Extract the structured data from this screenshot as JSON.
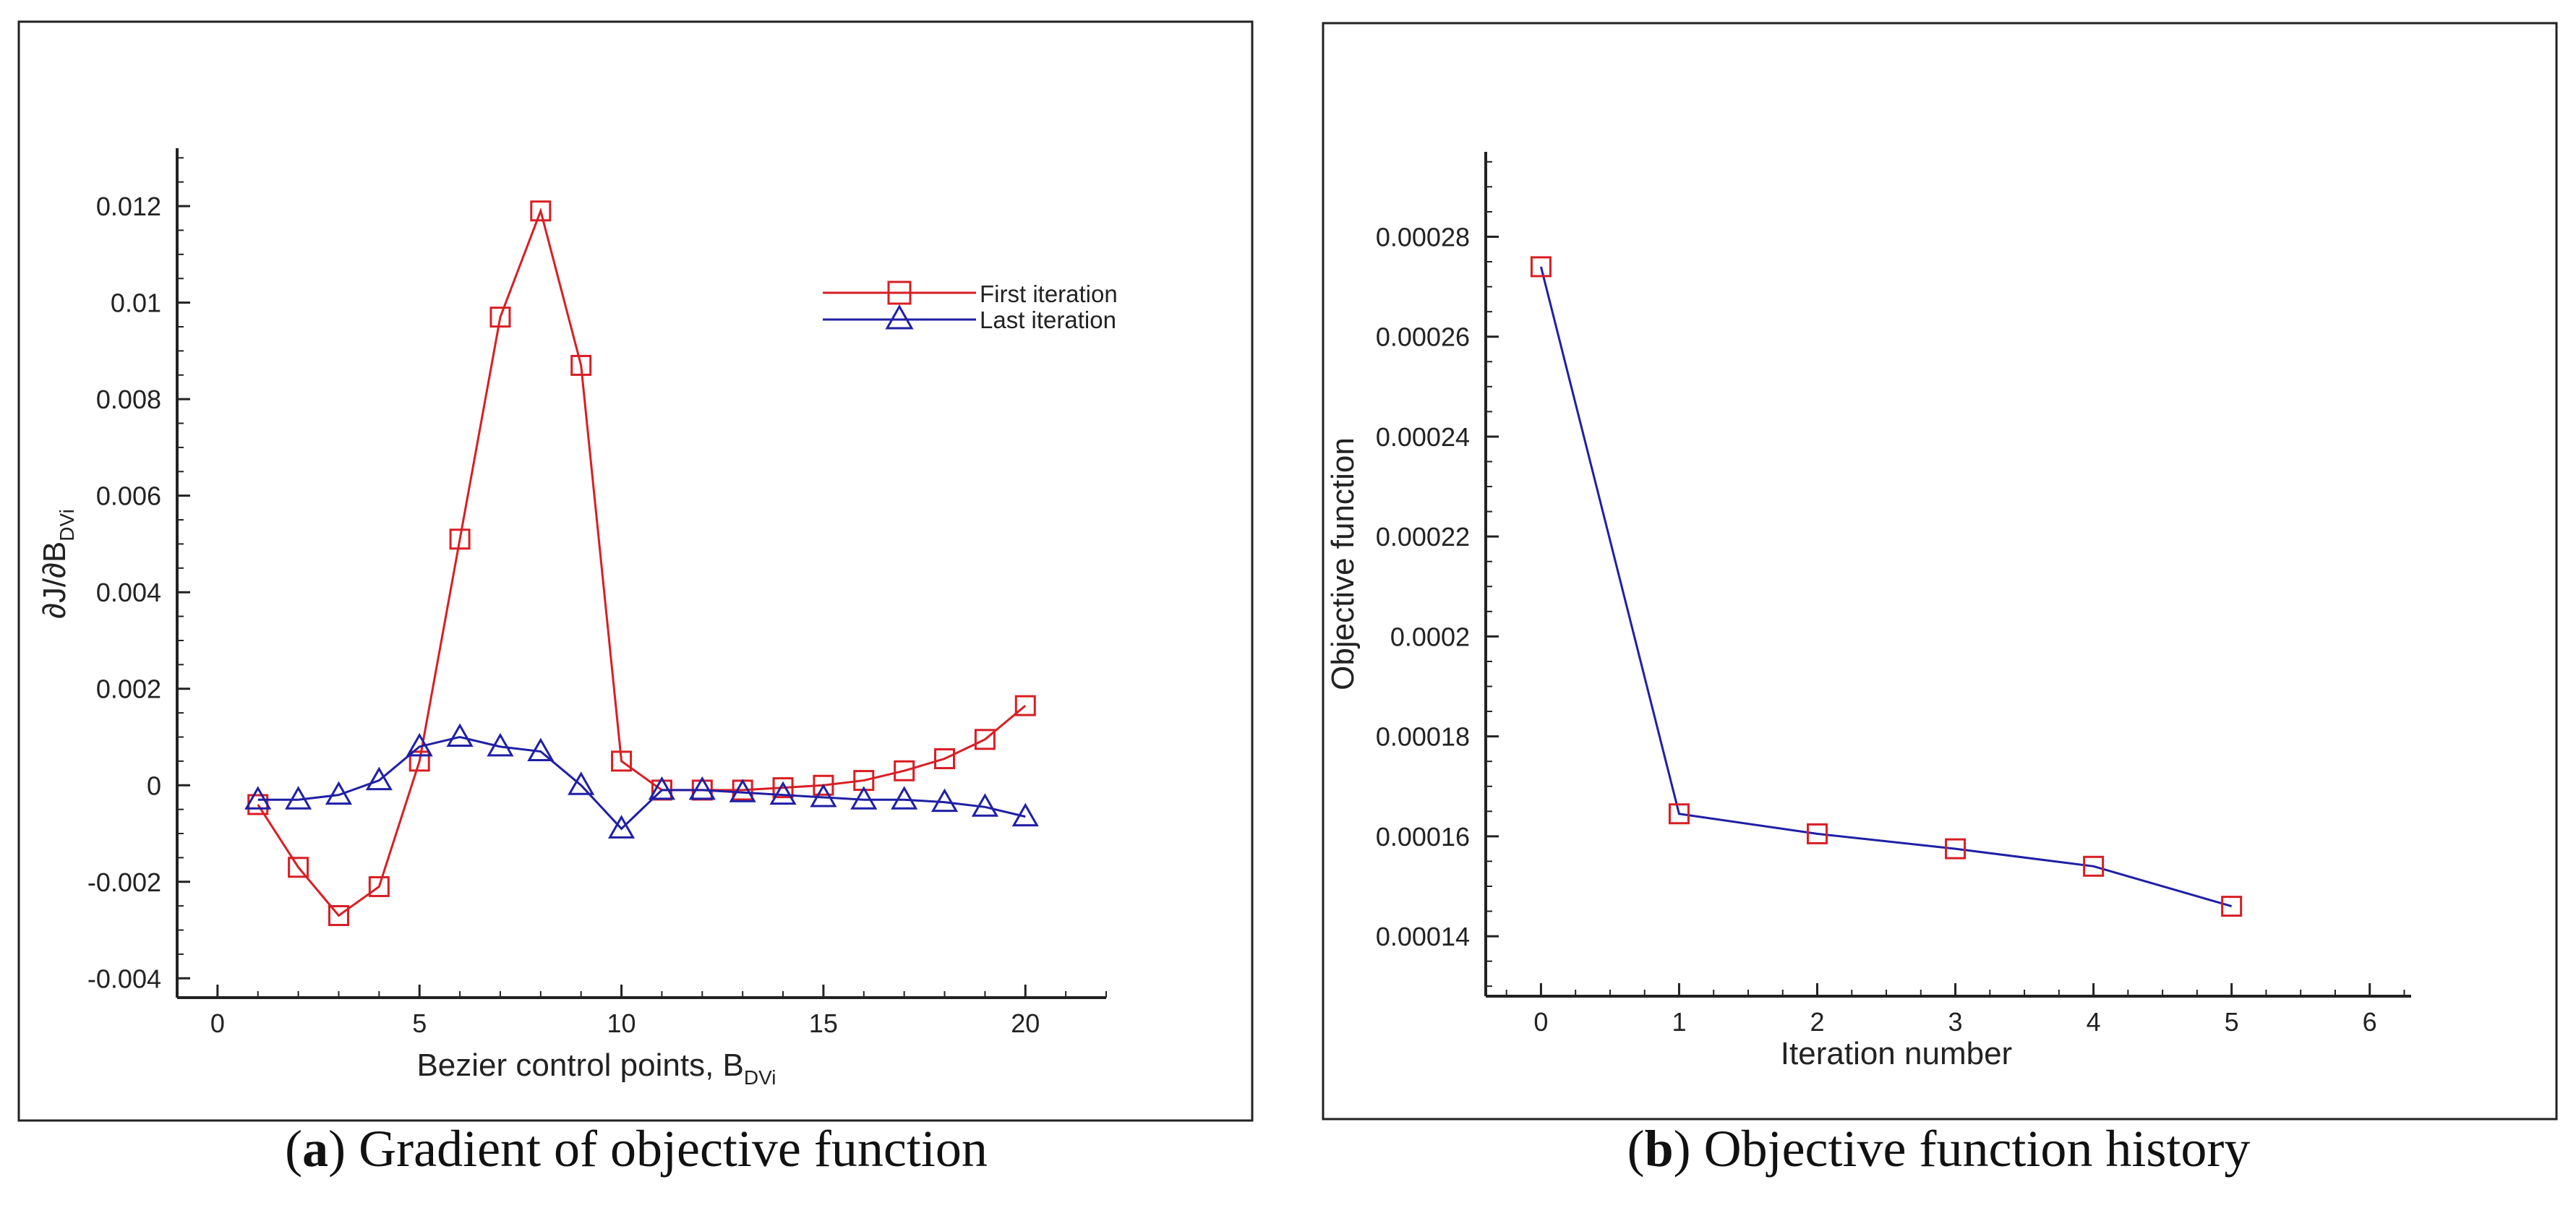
{
  "chart_data": [
    {
      "type": "line",
      "title": "",
      "xlabel": "Bezier control points,  B",
      "xlabel_sub": "DVi",
      "ylabel": "∂J/∂B",
      "ylabel_sub": "DVi",
      "xlim": [
        -1,
        22
      ],
      "ylim": [
        -0.0044,
        0.0132
      ],
      "xticks": [
        0,
        5,
        10,
        15,
        20
      ],
      "xtick_labels": [
        "0",
        "5",
        "10",
        "15",
        "20"
      ],
      "yticks": [
        -0.004,
        -0.002,
        0,
        0.002,
        0.004,
        0.006,
        0.008,
        0.01,
        0.012
      ],
      "ytick_labels": [
        "-0.004",
        "-0.002",
        "0",
        "0.002",
        "0.004",
        "0.006",
        "0.008",
        "0.01",
        "0.012"
      ],
      "legend_position": "top-right",
      "series": [
        {
          "name": "First iteration",
          "color": "#d81e24",
          "marker": "square",
          "x": [
            1,
            2,
            3,
            4,
            5,
            6,
            7,
            8,
            9,
            10,
            11,
            12,
            13,
            14,
            15,
            16,
            17,
            18,
            19,
            20
          ],
          "values": [
            -0.0004,
            -0.0017,
            -0.0027,
            -0.0021,
            0.0005,
            0.0051,
            0.0097,
            0.0119,
            0.0087,
            0.0005,
            -0.0001,
            -0.0001,
            -0.0001,
            -5e-05,
            0.0,
            0.0001,
            0.0003,
            0.00055,
            0.00095,
            0.00165
          ]
        },
        {
          "name": "Last iteration",
          "color": "#1f1fa6",
          "marker": "triangle",
          "x": [
            1,
            2,
            3,
            4,
            5,
            6,
            7,
            8,
            9,
            10,
            11,
            12,
            13,
            14,
            15,
            16,
            17,
            18,
            19,
            20
          ],
          "values": [
            -0.0003,
            -0.0003,
            -0.0002,
            0.0001,
            0.0008,
            0.001,
            0.0008,
            0.0007,
            0.0,
            -0.0009,
            -0.0001,
            -0.0001,
            -0.00015,
            -0.0002,
            -0.00025,
            -0.0003,
            -0.0003,
            -0.00035,
            -0.00045,
            -0.00065
          ]
        }
      ]
    },
    {
      "type": "line",
      "title": "",
      "xlabel": "Iteration number",
      "ylabel": "Objective function",
      "xlim": [
        -0.4,
        6.3
      ],
      "ylim": [
        0.000128,
        0.000297
      ],
      "xticks": [
        0,
        1,
        2,
        3,
        4,
        5,
        6
      ],
      "xtick_labels": [
        "0",
        "1",
        "2",
        "3",
        "4",
        "5",
        "6"
      ],
      "yticks": [
        0.00014,
        0.00016,
        0.00018,
        0.0002,
        0.00022,
        0.00024,
        0.00026,
        0.00028
      ],
      "ytick_labels": [
        "0.00014",
        "0.00016",
        "0.00018",
        "0.0002",
        "0.00022",
        "0.00024",
        "0.00026",
        "0.00028"
      ],
      "series": [
        {
          "name": "Objective function",
          "line_color": "#1f1fa6",
          "marker_color": "#d81e24",
          "marker": "square",
          "x": [
            0,
            1,
            2,
            3,
            4,
            5
          ],
          "values": [
            0.000274,
            0.0001645,
            0.0001605,
            0.0001575,
            0.000154,
            0.000146
          ]
        }
      ]
    }
  ],
  "captions": {
    "a": {
      "letter": "a",
      "text": ") Gradient of objective function"
    },
    "b": {
      "letter": "b",
      "text": ") Objective function history"
    }
  }
}
